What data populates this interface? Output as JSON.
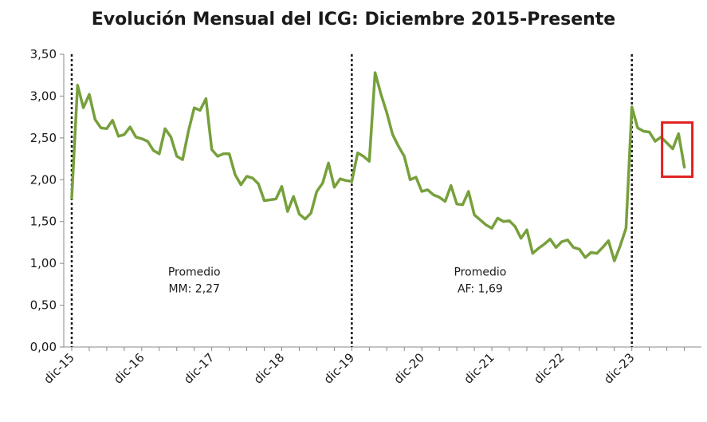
{
  "chart_data": {
    "type": "line",
    "title": "Evolución Mensual del ICG: Diciembre 2015-Presente",
    "xlabel": "",
    "ylabel": "",
    "ylim": [
      0,
      3.5
    ],
    "yticks": [
      "0,00",
      "0,50",
      "1,00",
      "1,50",
      "2,00",
      "2,50",
      "3,00",
      "3,50"
    ],
    "ytick_values": [
      0,
      0.5,
      1,
      1.5,
      2,
      2.5,
      3,
      3.5
    ],
    "xticks": [
      "dic-15",
      "dic-16",
      "dic-17",
      "dic-18",
      "dic-19",
      "dic-20",
      "dic-21",
      "dic-22",
      "dic-23"
    ],
    "grid": false,
    "series": [
      {
        "color": "#77a03c",
        "values": [
          1.78,
          3.13,
          2.86,
          3.02,
          2.72,
          2.62,
          2.61,
          2.71,
          2.52,
          2.54,
          2.63,
          2.51,
          2.49,
          2.46,
          2.35,
          2.31,
          2.61,
          2.51,
          2.28,
          2.24,
          2.58,
          2.86,
          2.83,
          2.97,
          2.36,
          2.28,
          2.31,
          2.31,
          2.06,
          1.94,
          2.04,
          2.02,
          1.95,
          1.75,
          1.76,
          1.77,
          1.92,
          1.62,
          1.8,
          1.59,
          1.53,
          1.6,
          1.86,
          1.96,
          2.2,
          1.91,
          2.01,
          1.99,
          1.98,
          2.32,
          2.28,
          2.22,
          3.28,
          3.02,
          2.8,
          2.54,
          2.4,
          2.28,
          2.0,
          2.03,
          1.86,
          1.88,
          1.82,
          1.79,
          1.74,
          1.93,
          1.71,
          1.7,
          1.86,
          1.58,
          1.52,
          1.46,
          1.42,
          1.54,
          1.5,
          1.51,
          1.44,
          1.3,
          1.4,
          1.12,
          1.18,
          1.23,
          1.29,
          1.19,
          1.26,
          1.28,
          1.19,
          1.17,
          1.07,
          1.13,
          1.12,
          1.19,
          1.27,
          1.03,
          1.21,
          1.42,
          2.87,
          2.62,
          2.58,
          2.57,
          2.46,
          2.51,
          2.44,
          2.37,
          2.55,
          2.15
        ]
      }
    ],
    "dividers_at_index": [
      0,
      48,
      96
    ],
    "annotations": [
      {
        "lines": [
          "Promedio",
          "MM: 2,27"
        ],
        "at_index": 21,
        "y": 0.95
      },
      {
        "lines": [
          "Promedio",
          "AF: 1,69"
        ],
        "at_index": 70,
        "y": 0.95
      }
    ],
    "highlight": {
      "from_index": 102,
      "to_index": 105,
      "color": "#e02020"
    }
  }
}
